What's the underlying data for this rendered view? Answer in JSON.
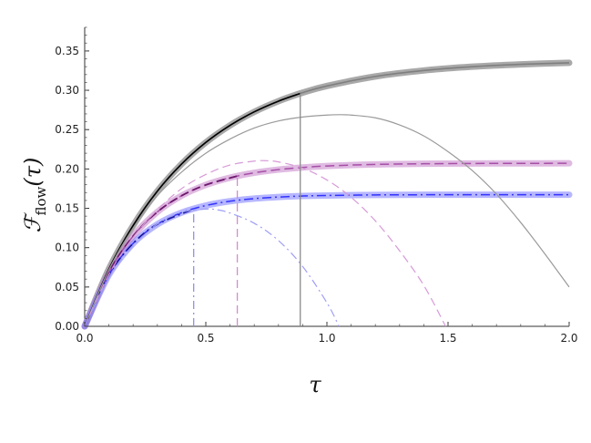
{
  "chart_data": {
    "type": "line",
    "xlabel": "τ",
    "ylabel": {
      "main": "ℱ",
      "sub": "flow",
      "arg": "(τ)"
    },
    "xlim": [
      0,
      2.0
    ],
    "ylim": [
      0,
      0.38
    ],
    "x_ticks": [
      "0.0",
      "0.5",
      "1.0",
      "1.5",
      "2.0"
    ],
    "x_tick_values": [
      0,
      0.5,
      1.0,
      1.5,
      2.0
    ],
    "y_ticks": [
      "0.00",
      "0.05",
      "0.10",
      "0.15",
      "0.20",
      "0.25",
      "0.30",
      "0.35"
    ],
    "y_tick_values": [
      0,
      0.05,
      0.1,
      0.15,
      0.2,
      0.25,
      0.3,
      0.35
    ],
    "grid": false,
    "colors": {
      "gray": "#7f7f7f",
      "gray_band": "#8c8c8c",
      "purple": "#a64fa6",
      "purple_band": "#c98ccd",
      "blue": "#3333ff",
      "blue_band": "#7a7aff",
      "black": "#000000",
      "dark_purple": "#6e1a6e",
      "dark_blue": "#1a1aa6"
    },
    "series": [
      {
        "style": "gray-band-solid",
        "x": [
          0,
          0.1,
          0.2,
          0.3,
          0.4,
          0.5,
          0.6,
          0.7,
          0.8,
          0.9,
          1.0,
          1.2,
          1.4,
          1.6,
          1.8,
          2.0
        ],
        "y": [
          0,
          0.0729,
          0.1281,
          0.1718,
          0.2063,
          0.2337,
          0.2554,
          0.2726,
          0.2862,
          0.297,
          0.3055,
          0.3176,
          0.3252,
          0.33,
          0.333,
          0.3349
        ]
      },
      {
        "style": "purple-band-dashed",
        "x": [
          0,
          0.1,
          0.2,
          0.3,
          0.4,
          0.5,
          0.6,
          0.7,
          0.8,
          0.9,
          1.0,
          1.2,
          1.4,
          1.6,
          1.8,
          2.0
        ],
        "y": [
          0,
          0.0688,
          0.1147,
          0.1454,
          0.166,
          0.1797,
          0.1889,
          0.1951,
          0.1992,
          0.2019,
          0.2038,
          0.2058,
          0.2066,
          0.207,
          0.2071,
          0.2072
        ]
      },
      {
        "style": "blue-band-dashdot",
        "x": [
          0,
          0.1,
          0.2,
          0.3,
          0.4,
          0.5,
          0.6,
          0.7,
          0.8,
          0.9,
          1.0,
          1.2,
          1.4,
          1.6,
          1.8,
          2.0
        ],
        "y": [
          0,
          0.0655,
          0.1054,
          0.1297,
          0.1445,
          0.1535,
          0.159,
          0.1623,
          0.1643,
          0.1656,
          0.1663,
          0.167,
          0.1672,
          0.1673,
          0.1673,
          0.1673
        ]
      },
      {
        "style": "black-solid-short",
        "x": [
          0,
          0.1,
          0.2,
          0.3,
          0.4,
          0.5,
          0.6,
          0.7,
          0.8,
          0.89
        ],
        "y": [
          0,
          0.0729,
          0.1281,
          0.1718,
          0.2063,
          0.2337,
          0.2554,
          0.2726,
          0.2862,
          0.296
        ]
      },
      {
        "style": "darkpurple-dashed-short",
        "x": [
          0,
          0.1,
          0.2,
          0.3,
          0.4,
          0.5,
          0.63
        ],
        "y": [
          0,
          0.0688,
          0.1147,
          0.1454,
          0.166,
          0.1797,
          0.191
        ]
      },
      {
        "style": "darkblue-dashdot-short",
        "x": [
          0,
          0.1,
          0.2,
          0.3,
          0.45
        ],
        "y": [
          0,
          0.0655,
          0.1054,
          0.1297,
          0.149
        ]
      },
      {
        "style": "gray-thin-parabola",
        "x": [
          0,
          0.1,
          0.2,
          0.3,
          0.4,
          0.5,
          0.6,
          0.7,
          0.8,
          0.9,
          1.0,
          1.05,
          1.1,
          1.2,
          1.3,
          1.4,
          1.5,
          1.6,
          1.7,
          1.8,
          1.9,
          2.0
        ],
        "y": [
          0,
          0.072,
          0.125,
          0.166,
          0.196,
          0.22,
          0.238,
          0.252,
          0.261,
          0.266,
          0.2685,
          0.269,
          0.2685,
          0.265,
          0.256,
          0.242,
          0.222,
          0.198,
          0.168,
          0.132,
          0.092,
          0.05
        ]
      },
      {
        "style": "purple-thin-dashed-parabola",
        "x": [
          0,
          0.1,
          0.2,
          0.3,
          0.4,
          0.5,
          0.6,
          0.7,
          0.75,
          0.8,
          0.9,
          1.0,
          1.1,
          1.2,
          1.3,
          1.4,
          1.49
        ],
        "y": [
          0,
          0.066,
          0.113,
          0.148,
          0.175,
          0.193,
          0.205,
          0.21,
          0.2105,
          0.209,
          0.201,
          0.186,
          0.164,
          0.134,
          0.096,
          0.052,
          0.0
        ]
      },
      {
        "style": "blue-thin-dashdot-parabola",
        "x": [
          0,
          0.1,
          0.2,
          0.3,
          0.4,
          0.5,
          0.55,
          0.6,
          0.7,
          0.8,
          0.9,
          1.0,
          1.05
        ],
        "y": [
          0,
          0.062,
          0.102,
          0.13,
          0.145,
          0.149,
          0.148,
          0.144,
          0.131,
          0.109,
          0.076,
          0.03,
          0.0
        ]
      }
    ],
    "vlines": [
      {
        "x": 0.89,
        "y_top": 0.296,
        "style": "gray-solid"
      },
      {
        "x": 0.63,
        "y_top": 0.191,
        "style": "purple-dashed"
      },
      {
        "x": 0.45,
        "y_top": 0.149,
        "style": "blue-dashdot"
      }
    ]
  }
}
